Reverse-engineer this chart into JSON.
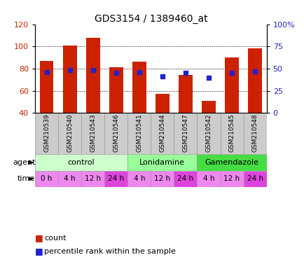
{
  "title": "GDS3154 / 1389460_at",
  "samples": [
    "GSM210539",
    "GSM210540",
    "GSM210543",
    "GSM210546",
    "GSM210541",
    "GSM210544",
    "GSM210547",
    "GSM210542",
    "GSM210545",
    "GSM210548"
  ],
  "counts": [
    87,
    101,
    108,
    81,
    86,
    57,
    74,
    51,
    90,
    98
  ],
  "percentiles": [
    46,
    48,
    48,
    45,
    46,
    41,
    45,
    40,
    45,
    47
  ],
  "ylim": [
    40,
    120
  ],
  "bar_color": "#CC2200",
  "dot_color": "#2222CC",
  "agent_groups": [
    {
      "label": "control",
      "start": 0,
      "end": 4,
      "color": "#CCFFCC"
    },
    {
      "label": "Lonidamine",
      "start": 4,
      "end": 7,
      "color": "#99FF99"
    },
    {
      "label": "Gamendazole",
      "start": 7,
      "end": 10,
      "color": "#44DD44"
    }
  ],
  "time_labels": [
    "0 h",
    "4 h",
    "12 h",
    "24 h",
    "4 h",
    "12 h",
    "24 h",
    "4 h",
    "12 h",
    "24 h"
  ],
  "time_colors": [
    "#EE88EE",
    "#EE88EE",
    "#EE88EE",
    "#DD44DD",
    "#EE88EE",
    "#EE88EE",
    "#DD44DD",
    "#EE88EE",
    "#EE88EE",
    "#DD44DD"
  ],
  "tick_left": [
    40,
    60,
    80,
    100,
    120
  ],
  "tick_right": [
    0,
    25,
    50,
    75,
    100
  ],
  "grid_values": [
    60,
    80,
    100
  ],
  "legend_count_label": "count",
  "legend_pct_label": "percentile rank within the sample",
  "sample_bg": "#CCCCCC",
  "bar_width": 0.6
}
